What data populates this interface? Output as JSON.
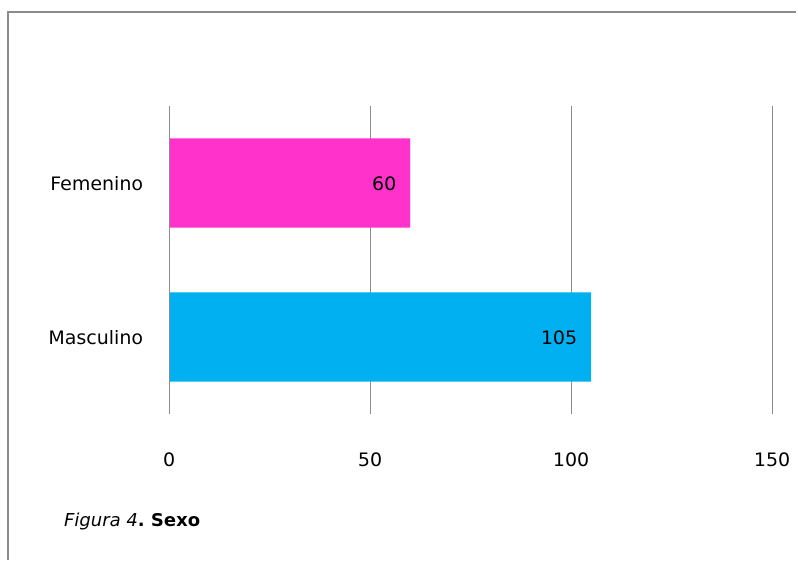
{
  "chart_data": {
    "type": "bar",
    "orientation": "horizontal",
    "categories": [
      "Femenino",
      "Masculino"
    ],
    "values": [
      60,
      105
    ],
    "colors": [
      "#ff33cc",
      "#00b0f0"
    ],
    "xlim": [
      0,
      150
    ],
    "xticks": [
      0,
      50,
      100,
      150
    ],
    "grid": true,
    "legend": "none",
    "title": "",
    "xlabel": "",
    "ylabel": ""
  },
  "caption": {
    "figure": "Figura 4",
    "separator": ". ",
    "title": "Sexo"
  }
}
